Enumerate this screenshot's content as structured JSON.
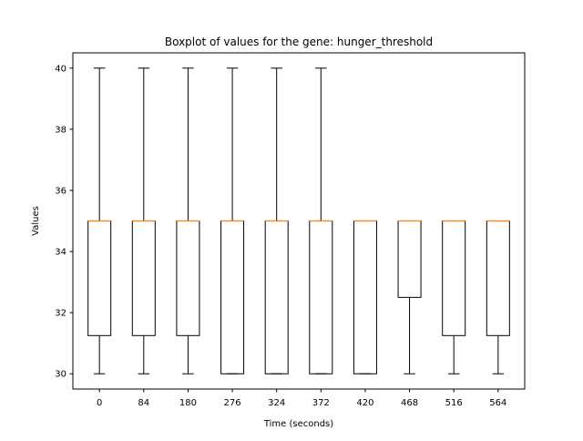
{
  "chart_data": {
    "type": "boxplot",
    "title": "Boxplot of values for the gene: hunger_threshold",
    "xlabel": "Time (seconds)",
    "ylabel": "Values",
    "ylim": [
      29.5,
      40.5
    ],
    "yticks": [
      30,
      32,
      34,
      36,
      38,
      40
    ],
    "ytick_labels": [
      "30",
      "32",
      "34",
      "36",
      "38",
      "40"
    ],
    "grid": false,
    "colors": {
      "box": "#000000",
      "median": "#ff7f0e",
      "background": "#ffffff"
    },
    "categories": [
      "0",
      "84",
      "180",
      "276",
      "324",
      "372",
      "420",
      "468",
      "516",
      "564"
    ],
    "boxes": [
      {
        "label": "0",
        "whisker_low": 30,
        "q1": 31.25,
        "median": 35,
        "q3": 35,
        "whisker_high": 40
      },
      {
        "label": "84",
        "whisker_low": 30,
        "q1": 31.25,
        "median": 35,
        "q3": 35,
        "whisker_high": 40
      },
      {
        "label": "180",
        "whisker_low": 30,
        "q1": 31.25,
        "median": 35,
        "q3": 35,
        "whisker_high": 40
      },
      {
        "label": "276",
        "whisker_low": 30,
        "q1": 30,
        "median": 35,
        "q3": 35,
        "whisker_high": 40
      },
      {
        "label": "324",
        "whisker_low": 30,
        "q1": 30,
        "median": 35,
        "q3": 35,
        "whisker_high": 40
      },
      {
        "label": "372",
        "whisker_low": 30,
        "q1": 30,
        "median": 35,
        "q3": 35,
        "whisker_high": 40
      },
      {
        "label": "420",
        "whisker_low": 30,
        "q1": 30,
        "median": 35,
        "q3": 35,
        "whisker_high": 35
      },
      {
        "label": "468",
        "whisker_low": 30,
        "q1": 32.5,
        "median": 35,
        "q3": 35,
        "whisker_high": 35
      },
      {
        "label": "516",
        "whisker_low": 30,
        "q1": 31.25,
        "median": 35,
        "q3": 35,
        "whisker_high": 35
      },
      {
        "label": "564",
        "whisker_low": 30,
        "q1": 31.25,
        "median": 35,
        "q3": 35,
        "whisker_high": 35
      }
    ]
  }
}
